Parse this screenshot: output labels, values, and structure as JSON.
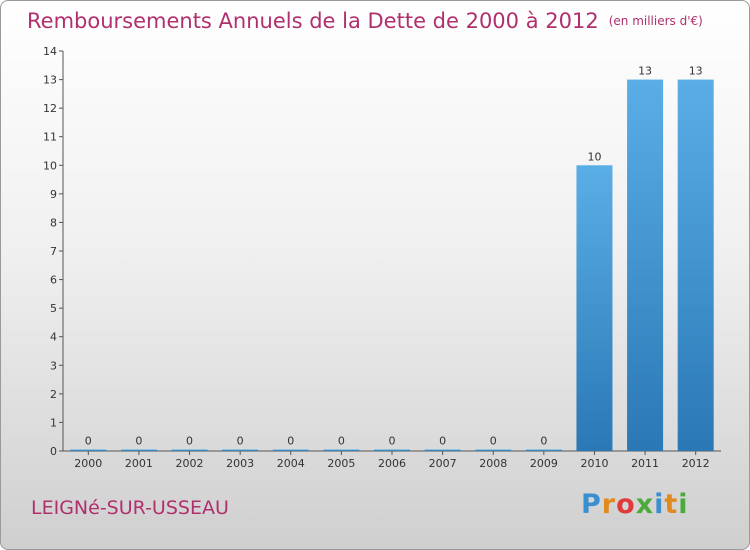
{
  "header": {
    "title": "Remboursements Annuels de la Dette de 2000 à 2012",
    "unit": "(en milliers d'€)"
  },
  "footer": {
    "commune": "LEIGNé-SUR-USSEAU",
    "logo": "Proxiti"
  },
  "colors": {
    "title": "#b0306e",
    "bar_top": "#5aaee6",
    "bar_bottom": "#2a78b6",
    "logo_letters": [
      "#3a8fd0",
      "#e08a1e",
      "#e03a3a",
      "#4aaa3a",
      "#3a8fd0",
      "#e08a1e",
      "#4aaa3a"
    ]
  },
  "chart_data": {
    "type": "bar",
    "categories": [
      "2000",
      "2001",
      "2002",
      "2003",
      "2004",
      "2005",
      "2006",
      "2007",
      "2008",
      "2009",
      "2010",
      "2011",
      "2012"
    ],
    "values": [
      0,
      0,
      0,
      0,
      0,
      0,
      0,
      0,
      0,
      0,
      10,
      13,
      13
    ],
    "data_labels": [
      "0",
      "0",
      "0",
      "0",
      "0",
      "0",
      "0",
      "0",
      "0",
      "0",
      "10",
      "13",
      "13"
    ],
    "yticks": [
      0,
      1,
      2,
      3,
      4,
      5,
      6,
      7,
      8,
      9,
      10,
      11,
      12,
      13,
      14
    ],
    "ylim": [
      0,
      14
    ],
    "grid": false,
    "legend": "none"
  }
}
